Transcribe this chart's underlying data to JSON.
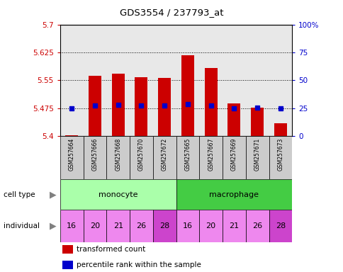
{
  "title": "GDS3554 / 237793_at",
  "samples": [
    "GSM257664",
    "GSM257666",
    "GSM257668",
    "GSM257670",
    "GSM257672",
    "GSM257665",
    "GSM257667",
    "GSM257669",
    "GSM257671",
    "GSM257673"
  ],
  "bar_values": [
    5.402,
    5.562,
    5.568,
    5.558,
    5.557,
    5.618,
    5.583,
    5.487,
    5.476,
    5.435
  ],
  "percentile_values": [
    5.475,
    5.482,
    5.483,
    5.482,
    5.482,
    5.485,
    5.482,
    5.474,
    5.476,
    5.474
  ],
  "ymin": 5.4,
  "ymax": 5.7,
  "yticks": [
    5.4,
    5.475,
    5.55,
    5.625,
    5.7
  ],
  "ytick_labels": [
    "5.4",
    "5.475",
    "5.55",
    "5.625",
    "5.7"
  ],
  "y2min": 0,
  "y2max": 100,
  "y2ticks": [
    0,
    25,
    50,
    75,
    100
  ],
  "y2tick_labels": [
    "0",
    "25",
    "50",
    "75",
    "100%"
  ],
  "bar_color": "#cc0000",
  "percentile_color": "#0000cc",
  "bar_bottom": 5.4,
  "monocyte_color": "#aaffaa",
  "macrophage_color": "#44cc44",
  "individual_values": [
    "16",
    "20",
    "21",
    "26",
    "28",
    "16",
    "20",
    "21",
    "26",
    "28"
  ],
  "individual_color": "#ee88ee",
  "individual_highlight_color": "#cc44cc",
  "highlight_individual": [
    4,
    9
  ],
  "grid_color": "#000000",
  "sample_bg_color": "#cccccc",
  "legend_red_label": "transformed count",
  "legend_blue_label": "percentile rank within the sample"
}
